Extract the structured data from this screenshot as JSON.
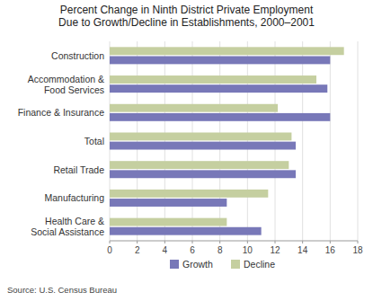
{
  "chart_data": {
    "type": "bar",
    "orientation": "horizontal",
    "title": "Percent Change in Ninth District Private Employment\nDue to Growth/Decline in Establishments, 2000–2001",
    "categories": [
      "Construction",
      "Accommodation &\nFood Services",
      "Finance & Insurance",
      "Total",
      "Retail Trade",
      "Manufacturing",
      "Health Care &\nSocial Assistance"
    ],
    "series": [
      {
        "name": "Growth",
        "color": "#7878b8",
        "values": [
          16.0,
          15.8,
          16.0,
          13.5,
          13.5,
          8.5,
          11.0
        ]
      },
      {
        "name": "Decline",
        "color": "#c5cfa0",
        "values": [
          17.0,
          15.0,
          12.2,
          13.2,
          13.0,
          11.5,
          8.5
        ]
      }
    ],
    "xlim": [
      0,
      18
    ],
    "xticks": [
      0,
      2,
      4,
      6,
      8,
      10,
      12,
      14,
      16,
      18
    ],
    "grid": true,
    "legend": "bottom",
    "source": "Source: U.S. Census Bureau"
  }
}
